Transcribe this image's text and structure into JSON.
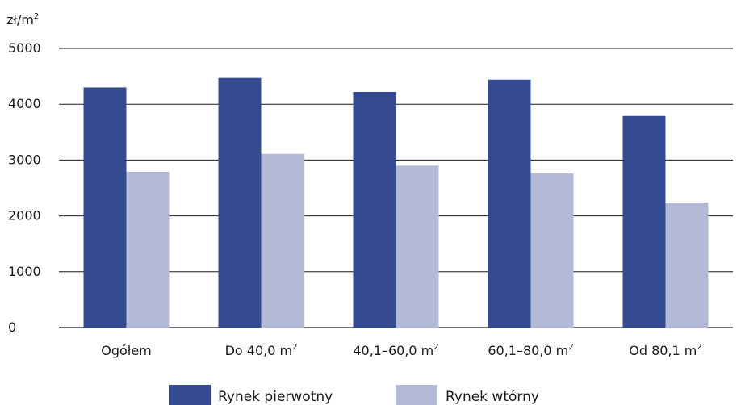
{
  "chart_data": {
    "type": "bar",
    "ylabel": "zł/m",
    "ylabel_superscript": "2",
    "ylim": [
      0,
      5000
    ],
    "yticks": [
      "0",
      "1000",
      "2000",
      "3000",
      "4000",
      "5000"
    ],
    "grid": true,
    "legend_position": "bottom",
    "categories": [
      {
        "label": "Ogółem",
        "sup": ""
      },
      {
        "label": "Do 40,0 m",
        "sup": "2"
      },
      {
        "label": "40,1–60,0 m",
        "sup": "2"
      },
      {
        "label": "60,1–80,0 m",
        "sup": "2"
      },
      {
        "label": "Od 80,1 m",
        "sup": "2"
      }
    ],
    "series": [
      {
        "name": "Rynek pierwotny",
        "color": "#344a91",
        "values": [
          4300,
          4470,
          4220,
          4440,
          3790
        ]
      },
      {
        "name": "Rynek wtórny",
        "color": "#b3bad8",
        "values": [
          2790,
          3110,
          2900,
          2760,
          2240
        ]
      }
    ]
  }
}
